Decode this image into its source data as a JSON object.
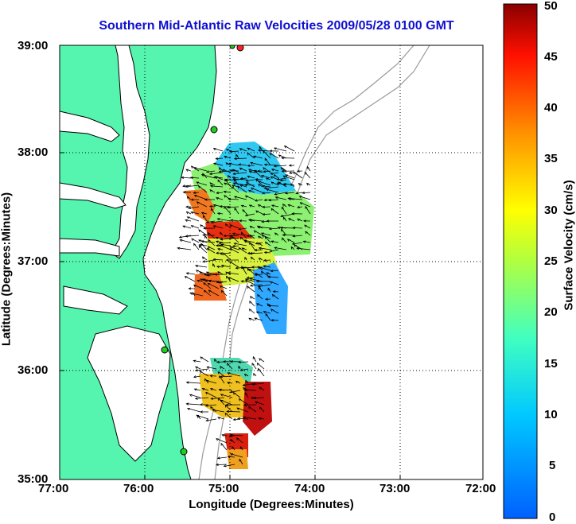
{
  "title": "Southern Mid-Atlantic Raw Velocities 2009/05/28 0100 GMT",
  "xlabel": "Longitude (Degrees:Minutes)",
  "ylabel": "Latitude (Degrees:Minutes)",
  "colorbar_label": "Surface Velocity (cm/s)",
  "chart_data": {
    "type": "heatmap",
    "x_ticks": [
      "77:00",
      "76:00",
      "75:00",
      "74:00",
      "73:00",
      "72:00"
    ],
    "y_ticks": [
      "39:00",
      "38:00",
      "37:00",
      "36:00",
      "35:00"
    ],
    "xlim": [
      -77,
      -72
    ],
    "ylim": [
      35,
      39
    ],
    "colorbar_ticks": [
      "50",
      "45",
      "40",
      "35",
      "30",
      "25",
      "20",
      "15",
      "10",
      "5",
      "0"
    ],
    "colorbar_range": [
      0,
      50
    ],
    "grid": true,
    "colors": {
      "land": "#55f5b0",
      "coast": "#000000",
      "bathymetry": "#9a9a9a",
      "title": "#1010d0",
      "station": "#22cc22",
      "station_alert": "#ff2020"
    }
  }
}
